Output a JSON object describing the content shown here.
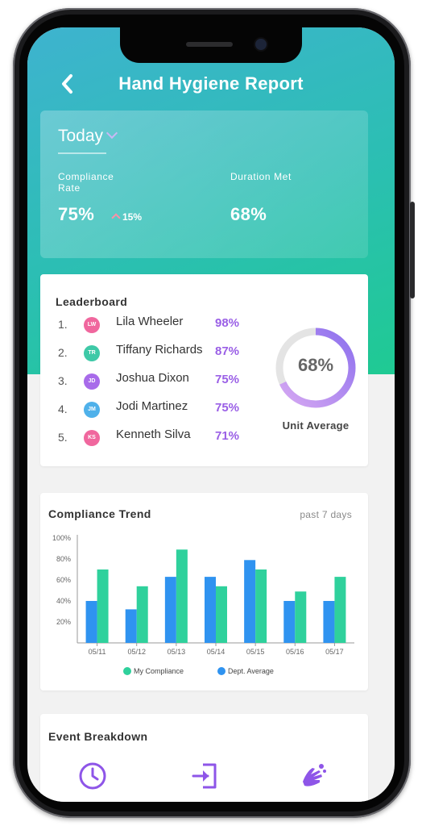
{
  "header": {
    "title": "Hand Hygiene Report",
    "back_icon": "chevron-left-icon"
  },
  "summary": {
    "period": "Today",
    "compliance": {
      "label": "Compliance Rate",
      "value": "75%",
      "delta": "15%",
      "delta_direction": "up"
    },
    "duration": {
      "label": "Duration Met",
      "value": "68%"
    }
  },
  "leaderboard": {
    "title": "Leaderboard",
    "entries": [
      {
        "rank": "1.",
        "initials": "LW",
        "name": "Lila Wheeler",
        "pct": "98%",
        "color": "#f0679e"
      },
      {
        "rank": "2.",
        "initials": "TR",
        "name": "Tiffany Richards",
        "pct": "87%",
        "color": "#3ec9a7"
      },
      {
        "rank": "3.",
        "initials": "JD",
        "name": "Joshua Dixon",
        "pct": "75%",
        "color": "#a86bea"
      },
      {
        "rank": "4.",
        "initials": "JM",
        "name": "Jodi Martinez",
        "pct": "75%",
        "color": "#4fb1ea"
      },
      {
        "rank": "5.",
        "initials": "KS",
        "name": "Kenneth Silva",
        "pct": "71%",
        "color": "#f0679e"
      }
    ],
    "unit_average": {
      "value": "68%",
      "fraction": 0.68,
      "label": "Unit Average"
    }
  },
  "trend": {
    "title": "Compliance Trend",
    "subtitle": "past 7 days",
    "legend": {
      "my": "My Compliance",
      "dept": "Dept. Average"
    },
    "colors": {
      "my": "#2fd19c",
      "dept": "#2f93f0"
    }
  },
  "chart_data": {
    "type": "bar",
    "categories": [
      "05/11",
      "05/12",
      "05/13",
      "05/14",
      "05/15",
      "05/16",
      "05/17"
    ],
    "series": [
      {
        "name": "Dept. Average",
        "values": [
          40,
          32,
          63,
          63,
          79,
          40,
          40
        ]
      },
      {
        "name": "My Compliance",
        "values": [
          70,
          54,
          89,
          54,
          70,
          49,
          63
        ]
      }
    ],
    "yticks": [
      "20%",
      "40%",
      "60%",
      "80%",
      "100%"
    ],
    "ylim": [
      0,
      100
    ],
    "legend_position": "bottom"
  },
  "events": {
    "title": "Event Breakdown",
    "icons": [
      "clock-icon",
      "entry-icon",
      "handwash-icon"
    ],
    "color": "#8e55e8"
  }
}
